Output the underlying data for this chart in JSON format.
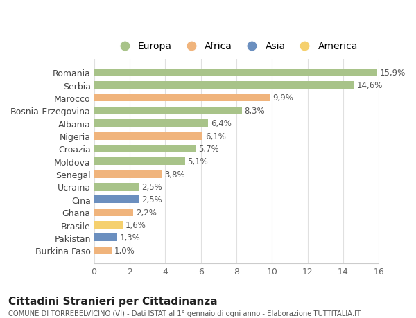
{
  "countries": [
    "Romania",
    "Serbia",
    "Marocco",
    "Bosnia-Erzegovina",
    "Albania",
    "Nigeria",
    "Croazia",
    "Moldova",
    "Senegal",
    "Ucraina",
    "Cina",
    "Ghana",
    "Brasile",
    "Pakistan",
    "Burkina Faso"
  ],
  "values": [
    15.9,
    14.6,
    9.9,
    8.3,
    6.4,
    6.1,
    5.7,
    5.1,
    3.8,
    2.5,
    2.5,
    2.2,
    1.6,
    1.3,
    1.0
  ],
  "labels": [
    "15,9%",
    "14,6%",
    "9,9%",
    "8,3%",
    "6,4%",
    "6,1%",
    "5,7%",
    "5,1%",
    "3,8%",
    "2,5%",
    "2,5%",
    "2,2%",
    "1,6%",
    "1,3%",
    "1,0%"
  ],
  "continents": [
    "Europa",
    "Europa",
    "Africa",
    "Europa",
    "Europa",
    "Africa",
    "Europa",
    "Europa",
    "Africa",
    "Europa",
    "Asia",
    "Africa",
    "America",
    "Asia",
    "Africa"
  ],
  "colors": {
    "Europa": "#a8c389",
    "Africa": "#f0b47c",
    "Asia": "#6b8fbf",
    "America": "#f5d06e"
  },
  "legend_order": [
    "Europa",
    "Africa",
    "Asia",
    "America"
  ],
  "xlim": [
    0,
    16
  ],
  "xticks": [
    0,
    2,
    4,
    6,
    8,
    10,
    12,
    14,
    16
  ],
  "title": "Cittadini Stranieri per Cittadinanza",
  "subtitle": "COMUNE DI TORREBELVICINO (VI) - Dati ISTAT al 1° gennaio di ogni anno - Elaborazione TUTTITALIA.IT",
  "bg_color": "#ffffff",
  "grid_color": "#e0e0e0"
}
